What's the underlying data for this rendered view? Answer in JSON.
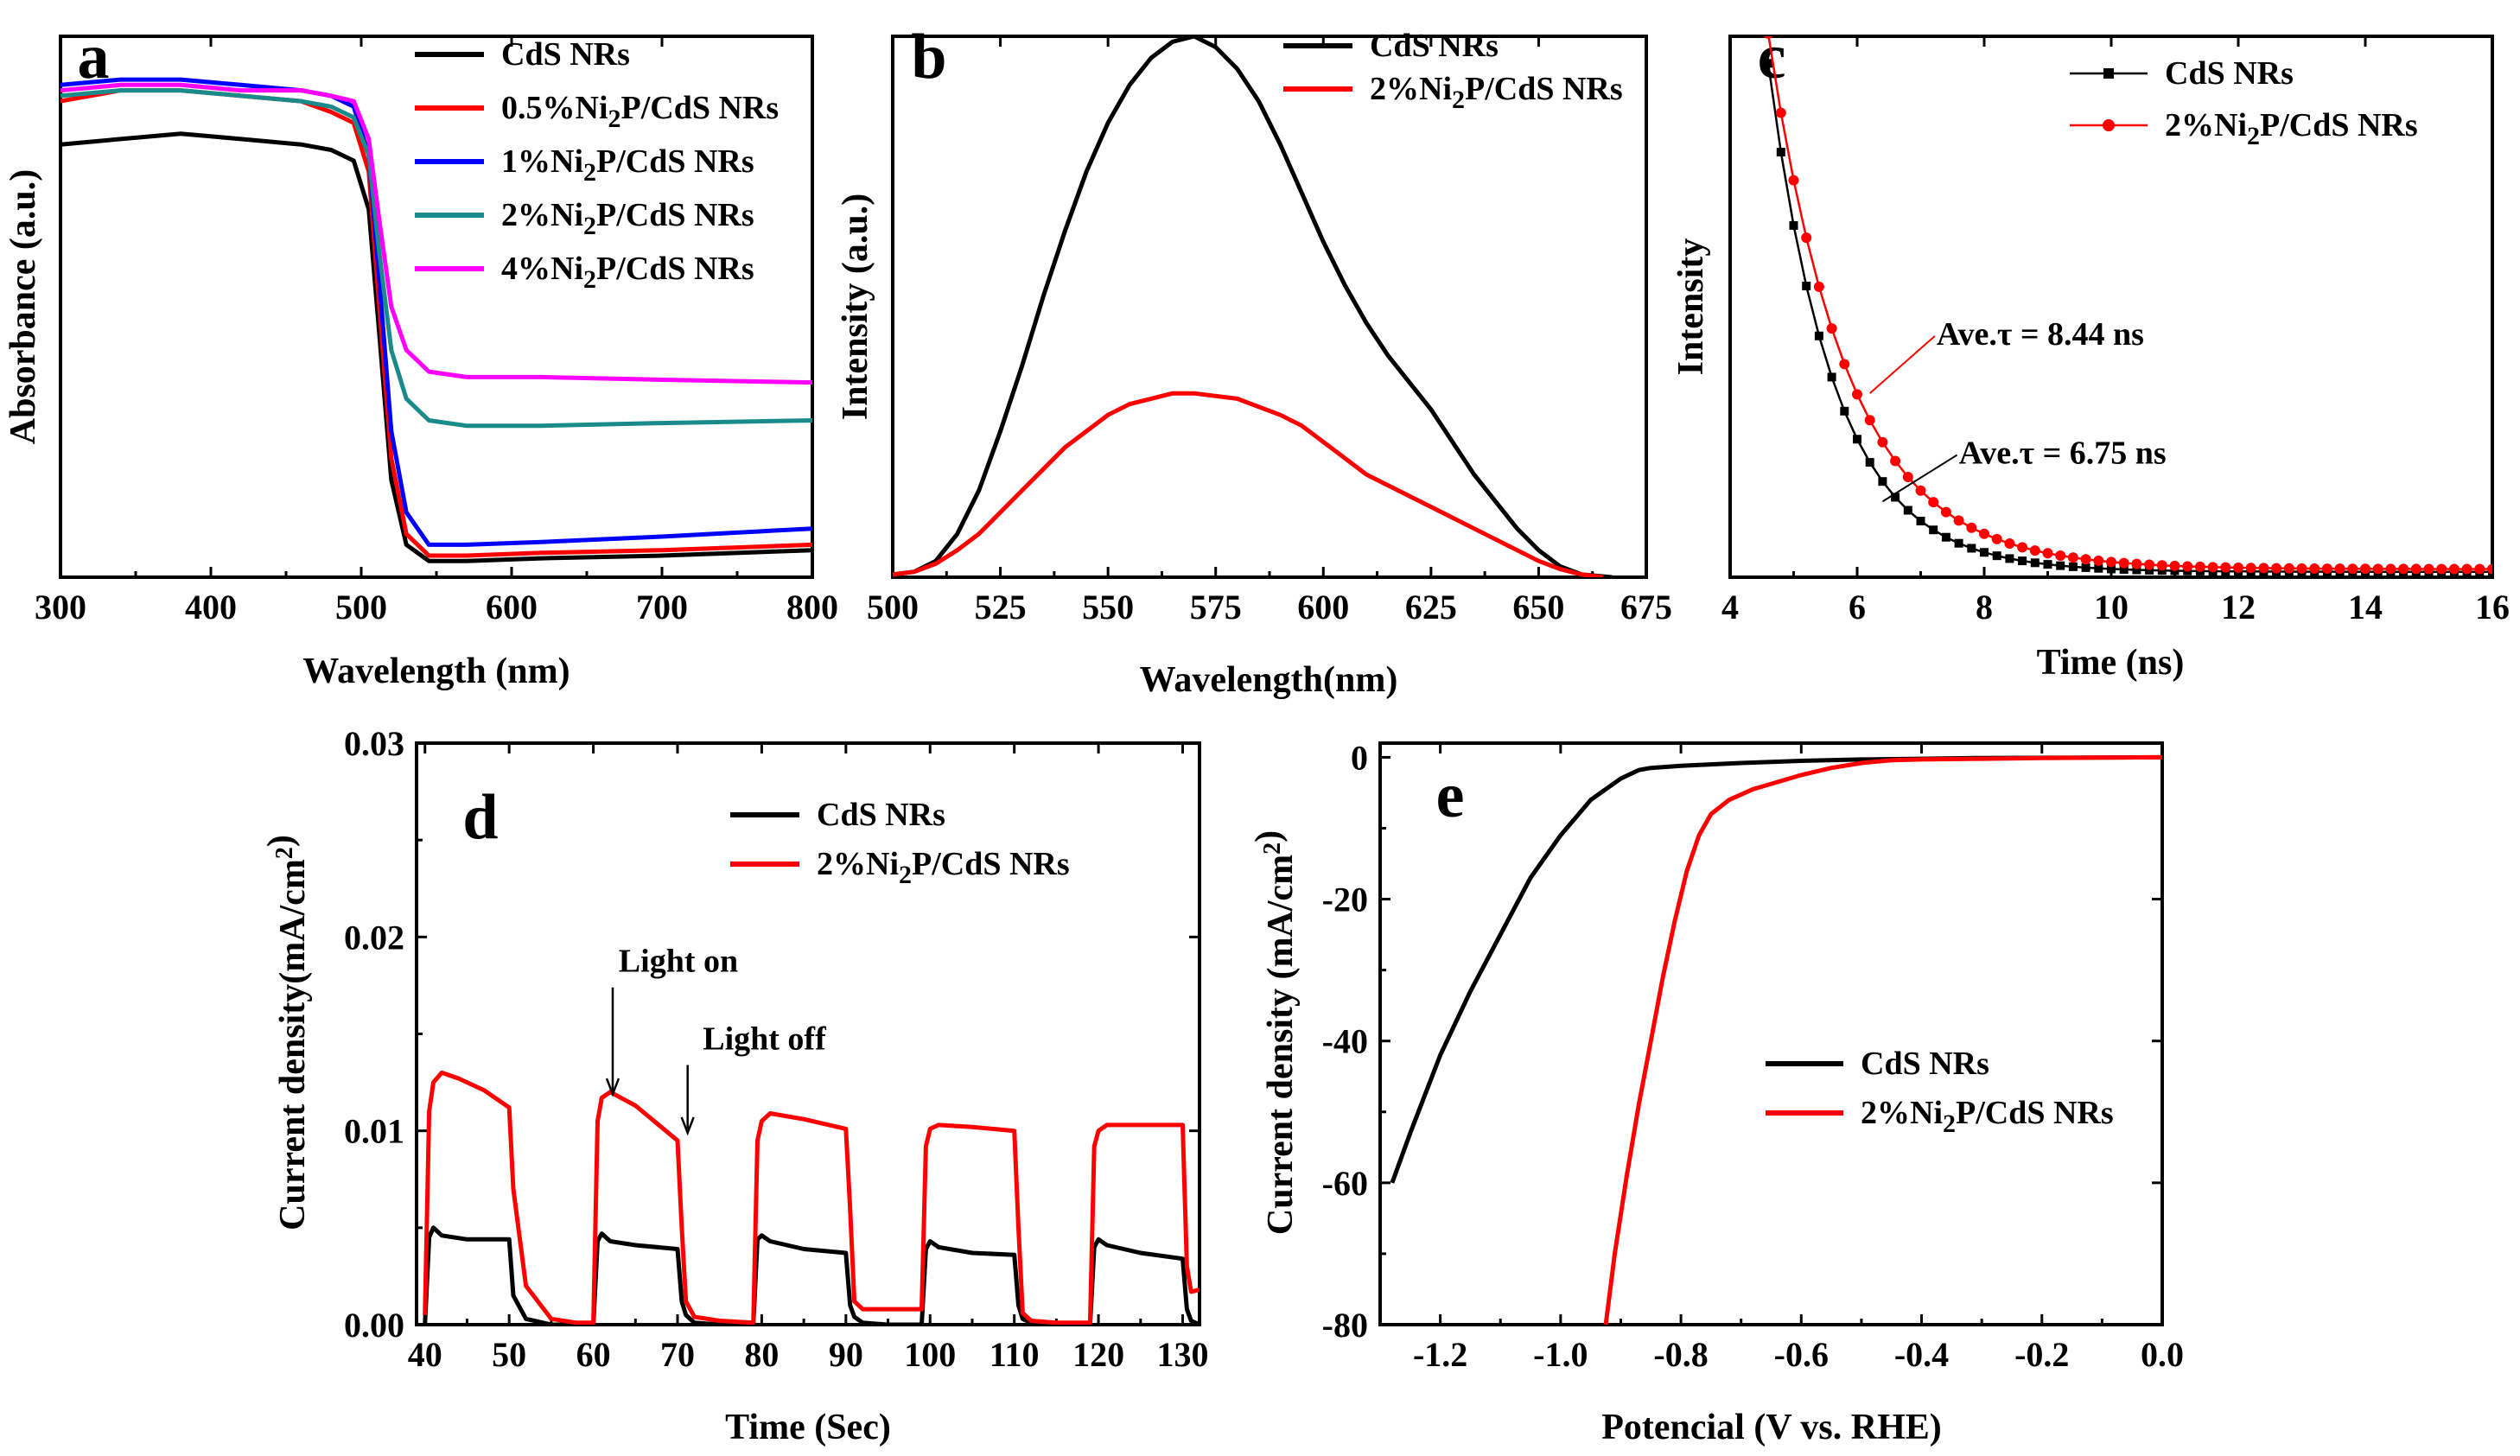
{
  "chart_data": [
    {
      "id": "a",
      "type": "line",
      "panel_label": "a",
      "xlabel": "Wavelength (nm)",
      "ylabel": "Absorbance (a.u.)",
      "xlim": [
        300,
        800
      ],
      "ylim": [
        0,
        1
      ],
      "xticks": [
        300,
        400,
        500,
        600,
        700,
        800
      ],
      "yticks": [],
      "legend_position": "top-right",
      "series": [
        {
          "name": "CdS NRs",
          "color": "#000000",
          "x": [
            300,
            340,
            380,
            420,
            460,
            480,
            495,
            505,
            512,
            520,
            530,
            545,
            570,
            620,
            700,
            800
          ],
          "y": [
            0.8,
            0.81,
            0.82,
            0.81,
            0.8,
            0.79,
            0.77,
            0.68,
            0.45,
            0.18,
            0.06,
            0.03,
            0.03,
            0.035,
            0.04,
            0.05
          ]
        },
        {
          "name": "0.5%Ni2P/CdS NRs",
          "color": "#ff0000",
          "x": [
            300,
            340,
            380,
            420,
            460,
            480,
            495,
            505,
            512,
            520,
            530,
            545,
            570,
            620,
            700,
            800
          ],
          "y": [
            0.88,
            0.9,
            0.9,
            0.89,
            0.88,
            0.86,
            0.84,
            0.75,
            0.5,
            0.22,
            0.08,
            0.04,
            0.04,
            0.045,
            0.05,
            0.06
          ]
        },
        {
          "name": "1%Ni2P/CdS NRs",
          "color": "#0000ff",
          "x": [
            300,
            340,
            380,
            420,
            460,
            480,
            495,
            505,
            512,
            520,
            530,
            545,
            570,
            620,
            700,
            800
          ],
          "y": [
            0.91,
            0.92,
            0.92,
            0.91,
            0.9,
            0.89,
            0.87,
            0.78,
            0.55,
            0.27,
            0.12,
            0.06,
            0.06,
            0.065,
            0.075,
            0.09
          ]
        },
        {
          "name": "2%Ni2P/CdS NRs",
          "color": "#1a8a8a",
          "x": [
            300,
            340,
            380,
            420,
            460,
            480,
            495,
            505,
            512,
            520,
            530,
            545,
            570,
            620,
            700,
            800
          ],
          "y": [
            0.89,
            0.9,
            0.9,
            0.89,
            0.88,
            0.87,
            0.85,
            0.78,
            0.6,
            0.42,
            0.33,
            0.29,
            0.28,
            0.28,
            0.285,
            0.29
          ]
        },
        {
          "name": "4%Ni2P/CdS NRs",
          "color": "#ff00ff",
          "x": [
            300,
            340,
            380,
            420,
            460,
            480,
            495,
            505,
            512,
            520,
            530,
            545,
            570,
            620,
            700,
            800
          ],
          "y": [
            0.9,
            0.91,
            0.91,
            0.9,
            0.9,
            0.89,
            0.88,
            0.81,
            0.66,
            0.5,
            0.42,
            0.38,
            0.37,
            0.37,
            0.365,
            0.36
          ]
        }
      ]
    },
    {
      "id": "b",
      "type": "line",
      "panel_label": "b",
      "xlabel": "Wavelength(nm)",
      "ylabel": "Intensity (a.u.)",
      "xlim": [
        500,
        675
      ],
      "ylim": [
        0,
        1
      ],
      "xticks": [
        500,
        525,
        550,
        575,
        600,
        625,
        650,
        675
      ],
      "yticks": [],
      "legend_position": "top-right",
      "series": [
        {
          "name": "CdS NRs",
          "color": "#000000",
          "x": [
            500,
            505,
            510,
            515,
            520,
            525,
            530,
            535,
            540,
            545,
            550,
            555,
            560,
            565,
            570,
            575,
            580,
            585,
            590,
            595,
            600,
            605,
            610,
            615,
            620,
            625,
            630,
            635,
            640,
            645,
            650,
            655,
            660,
            667
          ],
          "y": [
            0.005,
            0.01,
            0.03,
            0.08,
            0.16,
            0.27,
            0.39,
            0.52,
            0.64,
            0.75,
            0.84,
            0.91,
            0.96,
            0.99,
            1.0,
            0.98,
            0.94,
            0.88,
            0.8,
            0.71,
            0.62,
            0.54,
            0.47,
            0.41,
            0.36,
            0.31,
            0.25,
            0.19,
            0.14,
            0.09,
            0.05,
            0.02,
            0.005,
            0.0
          ]
        },
        {
          "name": "2%Ni2P/CdS NRs",
          "color": "#ff0000",
          "x": [
            500,
            505,
            510,
            515,
            520,
            525,
            530,
            535,
            540,
            545,
            550,
            555,
            560,
            565,
            570,
            575,
            580,
            585,
            590,
            595,
            600,
            605,
            610,
            615,
            620,
            625,
            630,
            635,
            640,
            645,
            650,
            655,
            660,
            665
          ],
          "y": [
            0.005,
            0.01,
            0.025,
            0.05,
            0.08,
            0.12,
            0.16,
            0.2,
            0.24,
            0.27,
            0.3,
            0.32,
            0.33,
            0.34,
            0.34,
            0.335,
            0.33,
            0.315,
            0.3,
            0.28,
            0.25,
            0.22,
            0.19,
            0.17,
            0.15,
            0.13,
            0.11,
            0.09,
            0.07,
            0.05,
            0.03,
            0.015,
            0.005,
            0.0
          ]
        }
      ]
    },
    {
      "id": "c",
      "type": "line",
      "panel_label": "c",
      "xlabel": "Time (ns)",
      "ylabel": "Intensity",
      "xlim": [
        4,
        16
      ],
      "ylim": [
        0,
        1
      ],
      "xticks": [
        4,
        6,
        8,
        10,
        12,
        14,
        16
      ],
      "yticks": [],
      "legend_position": "top-right",
      "series": [
        {
          "name": "CdS NRs",
          "color": "#000000",
          "marker": "square",
          "x0": 4.6,
          "dx": 0.2,
          "points": 58,
          "amplitude": 0.94,
          "tau": 0.75,
          "baseline": 0.01
        },
        {
          "name": "2%Ni2P/CdS NRs",
          "color": "#ff0000",
          "marker": "circle",
          "x0": 4.6,
          "dx": 0.2,
          "points": 58,
          "amplitude": 0.99,
          "tau": 0.9,
          "baseline": 0.015
        }
      ],
      "annotations": [
        {
          "text": "Ave.τ = 8.44 ns",
          "color": "#ff0000",
          "x": 7.25,
          "y": 0.43
        },
        {
          "text": "Ave.τ = 6.75 ns",
          "color": "#000000",
          "x": 7.6,
          "y": 0.21
        }
      ]
    },
    {
      "id": "d",
      "type": "line",
      "panel_label": "d",
      "xlabel": "Time (Sec)",
      "ylabel": "Current density(mA/cm²)",
      "xlim": [
        39,
        132
      ],
      "ylim": [
        0,
        0.03
      ],
      "xticks": [
        40,
        50,
        60,
        70,
        80,
        90,
        100,
        110,
        120,
        130
      ],
      "yticks": [
        0.0,
        0.01,
        0.02,
        0.03
      ],
      "ytick_labels": [
        "0.00",
        "0.01",
        "0.02",
        "0.03"
      ],
      "legend_position": "top-right",
      "series": [
        {
          "name": "CdS NRs",
          "color": "#000000",
          "x": [
            40,
            40.5,
            41,
            42,
            45,
            50,
            50.5,
            52,
            55,
            60,
            60.5,
            61,
            62,
            65,
            70,
            70.5,
            71,
            72,
            75,
            79,
            79.5,
            80,
            81,
            85,
            90,
            90.5,
            91,
            92,
            95,
            99,
            99.5,
            100,
            101,
            105,
            110,
            110.5,
            111,
            112,
            115,
            119,
            119.5,
            120,
            121,
            125,
            130,
            130.5,
            131,
            132
          ],
          "y": [
            0,
            0.0045,
            0.005,
            0.0046,
            0.0044,
            0.0044,
            0.0015,
            0.0003,
            0,
            0,
            0.0043,
            0.0047,
            0.0043,
            0.0041,
            0.0039,
            0.0012,
            0.0005,
            0.0001,
            0,
            0,
            0.0044,
            0.0046,
            0.0043,
            0.0039,
            0.0037,
            0.001,
            0.0004,
            0.0001,
            0,
            0,
            0.0039,
            0.0043,
            0.004,
            0.0037,
            0.0036,
            0.001,
            0.0003,
            0.0001,
            0,
            0,
            0.004,
            0.0044,
            0.0041,
            0.0037,
            0.0034,
            0.0008,
            0.0002,
            0
          ]
        },
        {
          "name": "2%Ni2P/CdS NRs",
          "color": "#ff0000",
          "x": [
            40,
            40.5,
            41,
            42,
            44,
            47,
            50,
            50.5,
            52,
            55,
            58,
            60,
            60.5,
            61,
            62,
            65,
            70,
            70.5,
            71,
            72,
            75,
            79,
            79.5,
            80,
            81,
            85,
            90,
            90.5,
            91,
            92,
            95,
            99,
            99.5,
            100,
            101,
            105,
            110,
            110.5,
            111,
            112,
            115,
            119,
            119.5,
            120,
            121,
            125,
            130,
            130.5,
            131,
            132
          ],
          "y": [
            0.0005,
            0.011,
            0.0125,
            0.013,
            0.0127,
            0.0121,
            0.0112,
            0.007,
            0.002,
            0.0003,
            0.0001,
            0.0001,
            0.0105,
            0.0117,
            0.012,
            0.0113,
            0.0095,
            0.005,
            0.0012,
            0.0004,
            0.0002,
            0.0001,
            0.0095,
            0.0105,
            0.0109,
            0.0106,
            0.0101,
            0.006,
            0.0012,
            0.0008,
            0.0008,
            0.0008,
            0.0092,
            0.0101,
            0.0103,
            0.0102,
            0.01,
            0.005,
            0.0006,
            0.0002,
            0.0001,
            0.0001,
            0.0092,
            0.01,
            0.0103,
            0.0103,
            0.0103,
            0.003,
            0.0017,
            0.0018
          ]
        }
      ],
      "annotations": [
        {
          "text": "Light on",
          "x": 63.0,
          "y": 0.0182,
          "arrow_to": [
            62.3,
            0.0119
          ]
        },
        {
          "text": "Light off",
          "x": 73.0,
          "y": 0.0142,
          "arrow_to": [
            71.2,
            0.0099
          ]
        }
      ]
    },
    {
      "id": "e",
      "type": "line",
      "panel_label": "e",
      "xlabel": "Potencial (V vs. RHE)",
      "ylabel": "Current density (mA/cm²)",
      "xlim": [
        -1.3,
        0.0
      ],
      "ylim": [
        -80,
        2
      ],
      "xticks": [
        -1.2,
        -1.0,
        -0.8,
        -0.6,
        -0.4,
        -0.2,
        0.0
      ],
      "xtick_labels": [
        "-1.2",
        "-1.0",
        "-0.8",
        "-0.6",
        "-0.4",
        "-0.2",
        "0.0"
      ],
      "yticks": [
        -80,
        -60,
        -40,
        -20,
        0
      ],
      "legend_position": "bottom-right",
      "series": [
        {
          "name": "CdS NRs",
          "color": "#000000",
          "x": [
            -1.28,
            -1.25,
            -1.2,
            -1.15,
            -1.1,
            -1.05,
            -1.0,
            -0.95,
            -0.9,
            -0.87,
            -0.85,
            -0.8,
            -0.75,
            -0.7,
            -0.6,
            -0.5,
            -0.4,
            -0.3,
            0.0
          ],
          "y": [
            -60,
            -53,
            -42,
            -33,
            -25,
            -17,
            -11,
            -6,
            -3,
            -1.8,
            -1.5,
            -1.2,
            -1.0,
            -0.8,
            -0.5,
            -0.3,
            -0.2,
            -0.1,
            0
          ]
        },
        {
          "name": "2%Ni2P/CdS NRs",
          "color": "#ff0000",
          "x": [
            -0.925,
            -0.91,
            -0.89,
            -0.87,
            -0.85,
            -0.83,
            -0.81,
            -0.79,
            -0.77,
            -0.75,
            -0.72,
            -0.68,
            -0.64,
            -0.6,
            -0.55,
            -0.5,
            -0.45,
            -0.4,
            -0.3,
            -0.2,
            -0.1,
            0.0
          ],
          "y": [
            -80,
            -70,
            -59,
            -49,
            -40,
            -31,
            -23,
            -16,
            -11,
            -8,
            -6,
            -4.5,
            -3.5,
            -2.5,
            -1.5,
            -0.8,
            -0.4,
            -0.3,
            -0.2,
            -0.1,
            -0.05,
            0
          ]
        }
      ]
    }
  ]
}
